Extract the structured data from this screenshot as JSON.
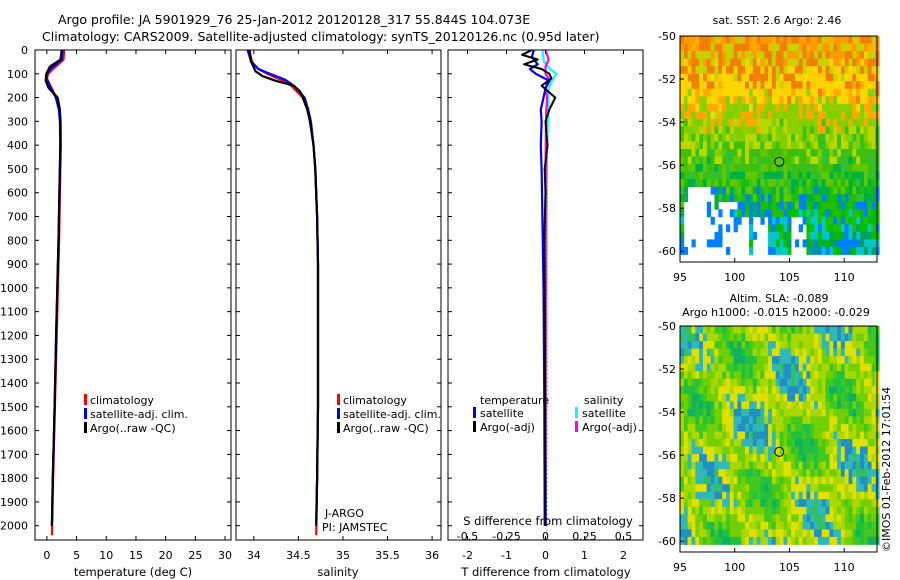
{
  "titles": {
    "line1": "Argo profile: JA 5901929_76 25-Jan-2012 20120128_317 55.844S 104.073E",
    "line2": "Climatology: CARS2009. Satellite-adjusted climatology: synTS_20120126.nc (0.95d later)"
  },
  "colors": {
    "climatology": "#ff0000",
    "satellite": "#0000ff",
    "argo": "#000000",
    "salinity_satellite": "#00ffff",
    "salinity_argo": "#ff00ff"
  },
  "chart_data": [
    {
      "type": "line",
      "panel": "temperature",
      "xlabel": "temperature (deg C)",
      "ylabel": "",
      "xlim": [
        -2,
        31
      ],
      "ylim": [
        2060,
        0
      ],
      "xticks": [
        0,
        5,
        10,
        15,
        20,
        25,
        30
      ],
      "xtick_labels": [
        "0",
        "5",
        "10",
        "15",
        "20",
        "25",
        "30"
      ],
      "yticks": [
        0,
        100,
        200,
        300,
        400,
        500,
        600,
        700,
        800,
        900,
        1000,
        1100,
        1200,
        1300,
        1400,
        1500,
        1600,
        1700,
        1800,
        1900,
        2000
      ],
      "ytick_labels": [
        "0",
        "100",
        "200",
        "300",
        "400",
        "500",
        "600",
        "700",
        "800",
        "900",
        "1000",
        "1100",
        "1200",
        "1300",
        "1400",
        "1500",
        "1600",
        "1700",
        "1800",
        "1900",
        "2000"
      ],
      "legend": [
        "climatology",
        "satellite-adj. clim.",
        "Argo(..raw -QC)"
      ],
      "series": [
        {
          "name": "climatology",
          "depth": [
            0,
            40,
            80,
            100,
            120,
            150,
            200,
            250,
            300,
            400,
            600,
            800,
            1000,
            1200,
            1500,
            1800,
            2040
          ],
          "values": [
            2.9,
            2.8,
            1.0,
            0.2,
            0.0,
            0.6,
            1.6,
            2.1,
            2.3,
            2.35,
            2.2,
            2.05,
            1.85,
            1.65,
            1.35,
            1.05,
            0.85
          ]
        },
        {
          "name": "satellite-adj. clim.",
          "depth": [
            0,
            40,
            80,
            100,
            120,
            150,
            200,
            250,
            300,
            400,
            600,
            800,
            1000,
            1200,
            1500,
            1800,
            2000
          ],
          "values": [
            2.6,
            2.5,
            0.6,
            0.0,
            -0.1,
            0.5,
            1.5,
            2.0,
            2.2,
            2.25,
            2.1,
            1.95,
            1.75,
            1.55,
            1.3,
            1.0,
            0.85
          ]
        },
        {
          "name": "Argo(..raw -QC)",
          "depth": [
            0,
            40,
            70,
            100,
            130,
            160,
            200,
            250,
            300,
            400,
            600,
            800,
            1000,
            1200,
            1500,
            1800,
            2000
          ],
          "values": [
            2.5,
            2.3,
            0.5,
            -0.1,
            -0.2,
            0.3,
            1.8,
            2.2,
            2.3,
            2.3,
            2.1,
            1.95,
            1.75,
            1.55,
            1.3,
            1.0,
            0.85
          ]
        }
      ]
    },
    {
      "type": "line",
      "panel": "salinity",
      "xlabel": "salinity",
      "xlim": [
        33.8,
        36.1
      ],
      "ylim": [
        2060,
        0
      ],
      "xticks": [
        34,
        34.5,
        35,
        35.5,
        36
      ],
      "xtick_labels": [
        "34",
        "34.5",
        "35",
        "35.5",
        "36"
      ],
      "legend": [
        "climatology",
        "satellite-adj. clim.",
        "Argo(..raw -QC)"
      ],
      "annotation": [
        "J-ARGO",
        "PI: JAMSTEC"
      ],
      "series": [
        {
          "name": "climatology",
          "depth": [
            0,
            50,
            80,
            100,
            125,
            150,
            200,
            250,
            300,
            400,
            500,
            700,
            900,
            1200,
            1500,
            1800,
            2040
          ],
          "values": [
            33.95,
            33.98,
            34.05,
            34.15,
            34.3,
            34.42,
            34.55,
            34.6,
            34.63,
            34.67,
            34.69,
            34.71,
            34.72,
            34.72,
            34.72,
            34.71,
            34.7
          ]
        },
        {
          "name": "satellite-adj. clim.",
          "depth": [
            0,
            50,
            80,
            100,
            125,
            150,
            200,
            250,
            300,
            400,
            500,
            700,
            900,
            1200,
            1500,
            1800,
            2000
          ],
          "values": [
            33.93,
            33.97,
            34.05,
            34.18,
            34.35,
            34.45,
            34.57,
            34.61,
            34.64,
            34.67,
            34.69,
            34.71,
            34.72,
            34.72,
            34.72,
            34.71,
            34.7
          ]
        },
        {
          "name": "Argo(..raw -QC)",
          "depth": [
            0,
            50,
            90,
            110,
            130,
            150,
            175,
            200,
            250,
            300,
            400,
            500,
            700,
            900,
            1200,
            1500,
            1800,
            2000
          ],
          "values": [
            33.95,
            33.97,
            34.02,
            34.1,
            34.25,
            34.45,
            34.52,
            34.55,
            34.6,
            34.63,
            34.67,
            34.69,
            34.71,
            34.72,
            34.72,
            34.72,
            34.71,
            34.7
          ]
        }
      ]
    },
    {
      "type": "line",
      "panel": "difference",
      "xlabel": "T difference from climatology",
      "top_axis_label": "S difference from climatology",
      "xlim": [
        -2.5,
        2.5
      ],
      "ylim": [
        2060,
        0
      ],
      "xticks": [
        -2,
        -1,
        0,
        1,
        2
      ],
      "xtick_labels": [
        "-2",
        "-1",
        "0",
        "1",
        "2"
      ],
      "s_xticks": [
        -0.5,
        -0.25,
        0,
        0.25,
        0.5
      ],
      "s_xtick_labels": [
        "-0.5",
        "-0.25",
        "0",
        "0.25",
        "0.5"
      ],
      "s_scale": 4,
      "legend_titles": [
        "temperature",
        "salinity"
      ],
      "legend": [
        "satellite",
        "Argo(-adj)",
        "satellite",
        "Argo(-adj)"
      ],
      "series": [
        {
          "name": "temperature satellite",
          "depth": [
            0,
            30,
            60,
            80,
            100,
            130,
            160,
            200,
            250,
            300,
            400,
            500,
            700,
            1000,
            1500,
            2000
          ],
          "values": [
            -0.3,
            -0.35,
            -0.2,
            -0.4,
            -0.25,
            0.1,
            0.0,
            -0.05,
            -0.12,
            -0.1,
            -0.12,
            -0.1,
            -0.08,
            -0.05,
            -0.03,
            -0.02
          ]
        },
        {
          "name": "temperature Argo(-adj)",
          "depth": [
            0,
            20,
            40,
            60,
            80,
            100,
            120,
            150,
            200,
            250,
            300,
            400,
            500,
            600,
            800,
            1000,
            1500,
            2000
          ],
          "values": [
            -0.35,
            -0.6,
            -0.2,
            -0.55,
            -0.1,
            0.1,
            0.15,
            -0.1,
            0.25,
            0.1,
            0.0,
            0.05,
            -0.02,
            0.0,
            -0.03,
            -0.02,
            -0.01,
            0.0
          ]
        },
        {
          "name": "salinity satellite",
          "depth": [
            0,
            50,
            80,
            100,
            130,
            160,
            200,
            250,
            300,
            400,
            600,
            800,
            1000,
            1500,
            2000
          ],
          "values": [
            -0.02,
            -0.01,
            0.03,
            0.07,
            0.04,
            0.02,
            0.015,
            0.02,
            0.015,
            0.01,
            0.008,
            0.006,
            0.005,
            0.004,
            0.003
          ]
        },
        {
          "name": "salinity Argo(-adj)",
          "depth": [
            0,
            40,
            70,
            100,
            120,
            140,
            160,
            200,
            250,
            300,
            400,
            600,
            800,
            1000,
            1500,
            2000
          ],
          "values": [
            0.0,
            0.02,
            0.0,
            0.0,
            0.02,
            0.01,
            0.0,
            0.01,
            0.005,
            0.003,
            0.001,
            0.0,
            0.0,
            0.0,
            0.0,
            0.0
          ]
        }
      ]
    },
    {
      "type": "heatmap",
      "panel": "sst-map",
      "title": "sat. SST: 2.6 Argo: 2.46",
      "xlim": [
        95,
        113
      ],
      "ylim": [
        -60.5,
        -50
      ],
      "xticks": [
        95,
        100,
        105,
        110
      ],
      "xtick_labels": [
        "95",
        "100",
        "105",
        "110"
      ],
      "yticks": [
        -50,
        -52,
        -54,
        -56,
        -58,
        -60
      ],
      "ytick_labels": [
        "-50",
        "-52",
        "-54",
        "-56",
        "-58",
        "-60"
      ],
      "marker": {
        "lon": 104.073,
        "lat": -55.844
      }
    },
    {
      "type": "heatmap",
      "panel": "sla-map",
      "title": "Altim. SLA: -0.089",
      "subtitle": "Argo h1000: -0.015 h2000: -0.029",
      "xlim": [
        95,
        113
      ],
      "ylim": [
        -60.5,
        -50
      ],
      "xticks": [
        95,
        100,
        105,
        110
      ],
      "xtick_labels": [
        "95",
        "100",
        "105",
        "110"
      ],
      "yticks": [
        -50,
        -52,
        -54,
        -56,
        -58,
        -60
      ],
      "ytick_labels": [
        "-50",
        "-52",
        "-54",
        "-56",
        "-58",
        "-60"
      ],
      "marker": {
        "lon": 104.073,
        "lat": -55.844
      }
    }
  ],
  "credit": "©IMOS 01-Feb-2012 17:01:54"
}
